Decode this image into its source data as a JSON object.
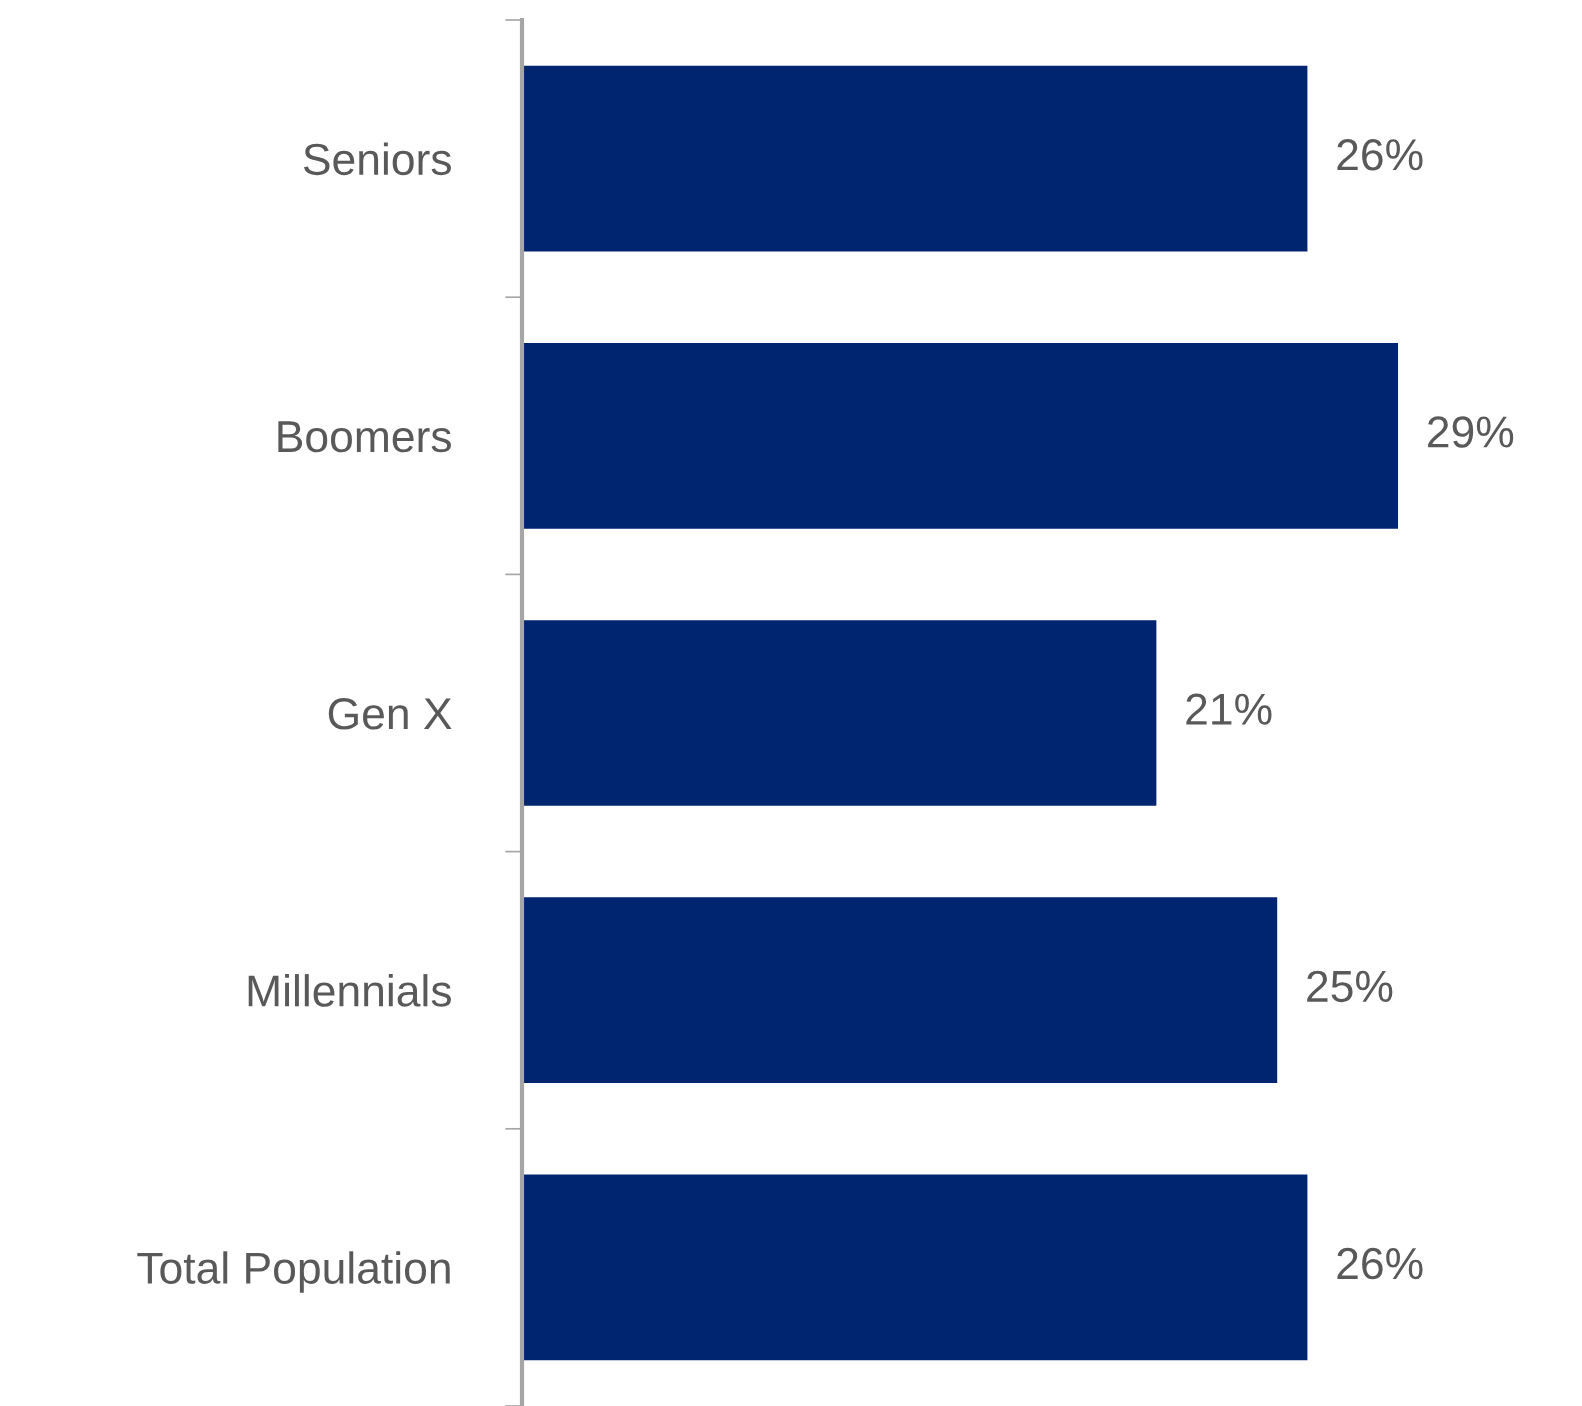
{
  "chart_data": {
    "type": "bar",
    "orientation": "horizontal",
    "categories": [
      "Seniors",
      "Boomers",
      "Gen X",
      "Millennials",
      "Total Population"
    ],
    "values": [
      26,
      29,
      21,
      25,
      26
    ],
    "value_labels": [
      "26%",
      "29%",
      "21%",
      "25%",
      "26%"
    ],
    "color": "#002570"
  }
}
